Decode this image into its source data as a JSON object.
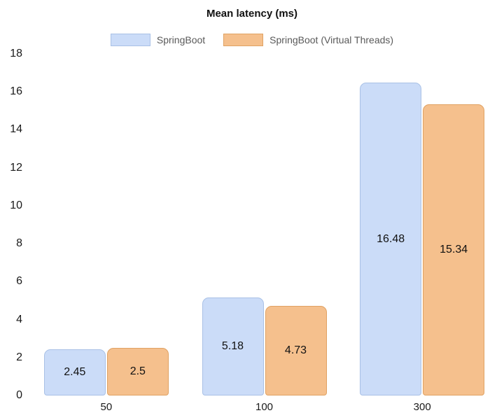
{
  "chart_data": {
    "type": "bar",
    "title": "Mean latency (ms)",
    "categories": [
      "50",
      "100",
      "300"
    ],
    "series": [
      {
        "name": "SpringBoot",
        "values": [
          2.45,
          5.18,
          16.48
        ],
        "fill": "#cbdcf8",
        "border": "#a9c1e6"
      },
      {
        "name": "SpringBoot (Virtual Threads)",
        "values": [
          2.5,
          4.73,
          15.34
        ],
        "fill": "#f5c08d",
        "border": "#e0a263"
      }
    ],
    "xlabel": "",
    "ylabel": "",
    "ylim": [
      0,
      18
    ],
    "ytick_step": 2,
    "grid": false,
    "legend_position": "top",
    "value_labels": "inside-center"
  },
  "styles": {
    "background": "#ffffff",
    "title_color": "#111111",
    "legend_text_color": "#595959",
    "axis_text_color": "#1a1a1a",
    "value_label_color": "#111111"
  }
}
